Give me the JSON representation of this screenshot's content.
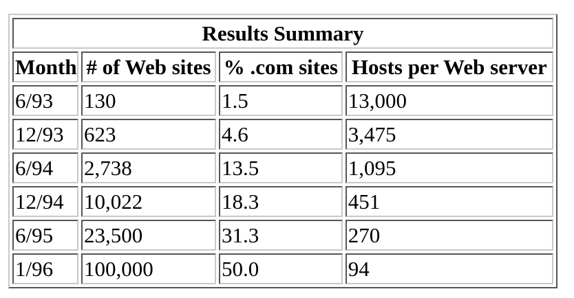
{
  "table": {
    "title": "Results Summary",
    "headers": [
      "Month",
      "# of Web sites",
      "% .com sites",
      "Hosts per Web server"
    ],
    "rows": [
      [
        "6/93",
        "130",
        "1.5",
        "13,000"
      ],
      [
        "12/93",
        "623",
        "4.6",
        "3,475"
      ],
      [
        "6/94",
        "2,738",
        "13.5",
        "1,095"
      ],
      [
        "12/94",
        "10,022",
        "18.3",
        "451"
      ],
      [
        "6/95",
        "23,500",
        "31.3",
        "270"
      ],
      [
        "1/96",
        "100,000",
        "50.0",
        "94"
      ]
    ]
  }
}
